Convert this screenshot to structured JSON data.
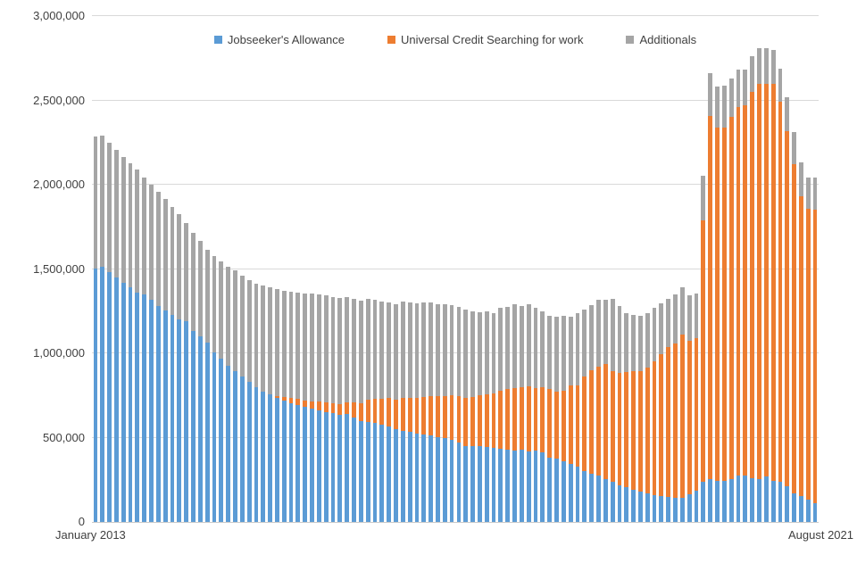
{
  "chart": {
    "legend": [
      {
        "label": "Jobseeker's Allowance",
        "color": "#5B9BD5"
      },
      {
        "label": "Universal Credit Searching for work",
        "color": "#ED7D31"
      },
      {
        "label": "Additionals",
        "color": "#A5A5A5"
      }
    ],
    "y_axis": {
      "tick_labels": [
        "0",
        "500,000",
        "1,000,000",
        "1,500,000",
        "2,000,000",
        "2,500,000",
        "3,000,000"
      ],
      "tick_values": [
        0,
        500000,
        1000000,
        1500000,
        2000000,
        2500000,
        3000000
      ]
    },
    "x_axis": {
      "start_label": "January 2013",
      "end_label": "August 2021"
    },
    "colors": {
      "gridline": "#D9D9D9",
      "axis_text": "#404040",
      "background": "#FFFFFF"
    }
  },
  "chart_data": {
    "type": "bar",
    "stacked": true,
    "title": "",
    "xlabel": "",
    "ylabel": "",
    "ylim": [
      0,
      3000000
    ],
    "x_range": {
      "start": "January 2013",
      "end": "August 2021",
      "interval": "monthly"
    },
    "legend_position": "top",
    "grid": true,
    "series": [
      {
        "name": "Jobseeker's Allowance",
        "color": "#5B9BD5",
        "values": [
          1505000,
          1512000,
          1480000,
          1450000,
          1420000,
          1390000,
          1362000,
          1350000,
          1319000,
          1283000,
          1253000,
          1225000,
          1200000,
          1189000,
          1132000,
          1100000,
          1061000,
          1007000,
          968000,
          925000,
          895000,
          860000,
          830000,
          800000,
          775000,
          755000,
          735000,
          718000,
          706000,
          695000,
          684000,
          673000,
          662000,
          651000,
          644000,
          634000,
          639000,
          621000,
          598000,
          595000,
          586000,
          577000,
          568000,
          550000,
          541000,
          532000,
          523000,
          518000,
          514000,
          505000,
          496000,
          488000,
          473000,
          452000,
          448000,
          452000,
          445000,
          437000,
          433000,
          430000,
          425000,
          430000,
          420000,
          425000,
          415000,
          381000,
          375000,
          360000,
          345000,
          330000,
          300000,
          287000,
          273000,
          256000,
          239000,
          216000,
          204000,
          190000,
          180000,
          168000,
          160000,
          155000,
          150000,
          145000,
          145000,
          165000,
          185000,
          240000,
          252000,
          242000,
          242000,
          252000,
          274000,
          277000,
          259000,
          252000,
          268000,
          242000,
          238000,
          211000,
          170000,
          152000,
          131000,
          113000
        ]
      },
      {
        "name": "Universal Credit Searching for work",
        "color": "#ED7D31",
        "values": [
          0,
          0,
          0,
          0,
          0,
          0,
          0,
          0,
          0,
          0,
          0,
          0,
          0,
          0,
          0,
          0,
          0,
          0,
          0,
          0,
          0,
          0,
          0,
          0,
          0,
          0,
          12000,
          22000,
          28000,
          33000,
          38000,
          44000,
          50000,
          57000,
          62000,
          66000,
          70000,
          90000,
          107000,
          130000,
          143000,
          155000,
          165000,
          175000,
          192000,
          206000,
          214000,
          223000,
          232000,
          241000,
          251000,
          261000,
          272000,
          285000,
          292000,
          299000,
          310000,
          327000,
          344000,
          357000,
          369000,
          370000,
          385000,
          369000,
          385000,
          409000,
          397000,
          420000,
          464000,
          482000,
          565000,
          613000,
          647000,
          682000,
          653000,
          666000,
          686000,
          706000,
          716000,
          749000,
          795000,
          842000,
          885000,
          911000,
          965000,
          907000,
          903000,
          1550000,
          2158000,
          2098000,
          2098000,
          2148000,
          2186000,
          2193000,
          2291000,
          2348000,
          2332000,
          2358000,
          2252000,
          2109000,
          1950000,
          1778000,
          1724000,
          1737000
        ]
      },
      {
        "name": "Additionals",
        "color": "#A5A5A5",
        "values": [
          779000,
          778000,
          770000,
          755000,
          745000,
          735000,
          728000,
          695000,
          681000,
          677000,
          662000,
          645000,
          625000,
          586000,
          583000,
          565000,
          554000,
          568000,
          577000,
          590000,
          595000,
          600000,
          605000,
          615000,
          625000,
          635000,
          633000,
          632000,
          631000,
          630000,
          630000,
          638000,
          636000,
          634000,
          630000,
          630000,
          627000,
          614000,
          606000,
          597000,
          588000,
          576000,
          571000,
          568000,
          575000,
          566000,
          562000,
          563000,
          558000,
          547000,
          543000,
          535000,
          531000,
          521000,
          510000,
          494000,
          495000,
          476000,
          491000,
          489000,
          499000,
          481000,
          488000,
          478000,
          450000,
          432000,
          443000,
          442000,
          406000,
          424000,
          393000,
          386000,
          400000,
          379000,
          430000,
          399000,
          348000,
          331000,
          326000,
          321000,
          315000,
          300000,
          289000,
          294000,
          283000,
          273000,
          268000,
          265000,
          250000,
          240000,
          250000,
          230000,
          220000,
          210000,
          210000,
          210000,
          210000,
          200000,
          200000,
          200000,
          190000,
          200000,
          185000,
          190000
        ]
      }
    ]
  }
}
